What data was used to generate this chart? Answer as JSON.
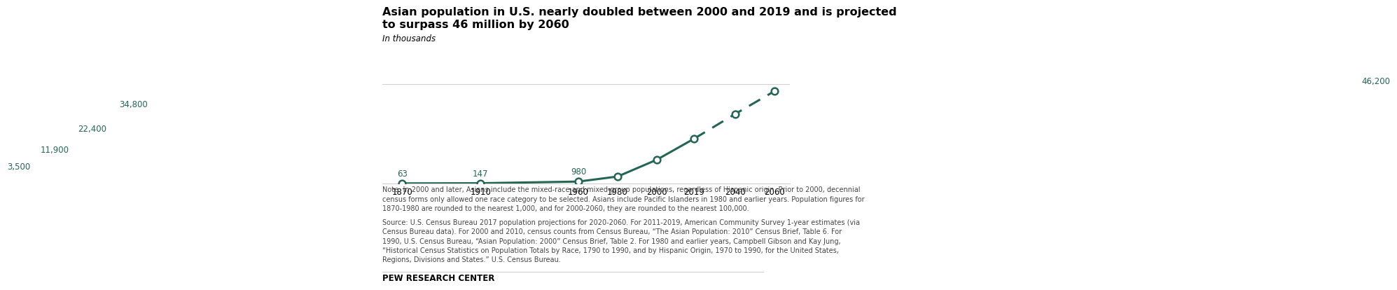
{
  "title_line1": "Asian population in U.S. nearly doubled between 2000 and 2019 and is projected",
  "title_line2": "to surpass 46 million by 2060",
  "subtitle": "In thousands",
  "solid_years": [
    1870,
    1910,
    1960,
    1980,
    2000,
    2019
  ],
  "solid_values": [
    63,
    147,
    980,
    3500,
    11900,
    22400
  ],
  "dashed_years": [
    2019,
    2040,
    2060
  ],
  "dashed_values": [
    22400,
    34800,
    46200
  ],
  "all_years": [
    1870,
    1910,
    1960,
    1980,
    2000,
    2019,
    2040,
    2060
  ],
  "all_values": [
    63,
    147,
    980,
    3500,
    11900,
    22400,
    34800,
    46200
  ],
  "line_color": "#236655",
  "marker_facecolor": "#ffffff",
  "marker_edgecolor": "#236655",
  "label_color": "#236655",
  "grid_color": "#d0d0d0",
  "bg_color": "#ffffff",
  "text_color": "#000000",
  "note_source_color": "#444444",
  "title_fontsize": 11.5,
  "subtitle_fontsize": 8.5,
  "tick_fontsize": 8.5,
  "label_fontsize": 8.5,
  "note_fontsize": 7.0,
  "footer_fontsize": 8.5,
  "ylim": [
    0,
    50000
  ],
  "note_text": "Note: In 2000 and later, Asians include the mixed-race and mixed-group populations, regardless of Hispanic origin. Prior to 2000, decennial\ncensus forms only allowed one race category to be selected. Asians include Pacific Islanders in 1980 and earlier years. Population figures for\n1870-1980 are rounded to the nearest 1,000, and for 2000-2060, they are rounded to the nearest 100,000.",
  "source_text": "Source: U.S. Census Bureau 2017 population projections for 2020-2060. For 2011-2019, American Community Survey 1-year estimates (via\nCensus Bureau data). For 2000 and 2010, census counts from Census Bureau, “The Asian Population: 2010” Census Brief, Table 6. For\n1990, U.S. Census Bureau, “Asian Population: 2000” Census Brief, Table 2. For 1980 and earlier years, Campbell Gibson and Kay Jung,\n“Historical Census Statistics on Population Totals by Race, 1790 to 1990, and by Hispanic Origin, 1970 to 1990, for the United States,\nRegions, Divisions and States.” U.S. Census Bureau.",
  "footer_text": "PEW RESEARCH CENTER"
}
